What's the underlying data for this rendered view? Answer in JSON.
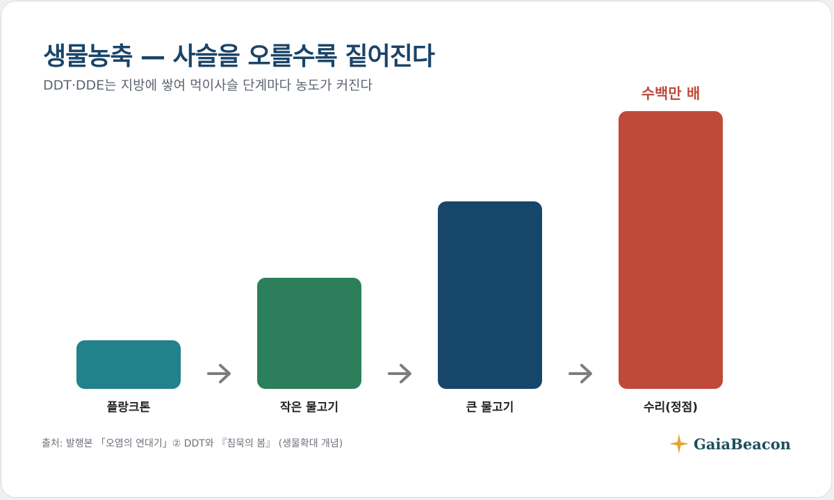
{
  "title": "생물농축 — 사슬을 오를수록 짙어진다",
  "subtitle": "DDT·DDE는 지방에 쌓여 먹이사슬 단계마다 농도가 커진다",
  "source": "출처: 발행본 「오염의 연대기」② DDT와 『침묵의 봄』 (생물확대 개념)",
  "brand": {
    "name": "GaiaBeacon",
    "icon": "compass-star-icon",
    "star_color": "#e0a630"
  },
  "chart_data": {
    "type": "bar",
    "categories": [
      "플랑크톤",
      "작은 물고기",
      "큰 물고기",
      "수리(정점)"
    ],
    "values": [
      0.175,
      0.4,
      0.675,
      1.0
    ],
    "value_unit": "relative concentration (no axis shown)",
    "colors": [
      "#22818a",
      "#2d7e5b",
      "#17466b",
      "#bf4a3a"
    ],
    "top_annotation": {
      "category": "수리(정점)",
      "text": "수백만 배",
      "color": "#bf4a3a"
    },
    "arrows_between_bars": true,
    "arrow_color": "#7d7d7d",
    "ylim": [
      0,
      1
    ],
    "grid": false,
    "legend": "none"
  }
}
